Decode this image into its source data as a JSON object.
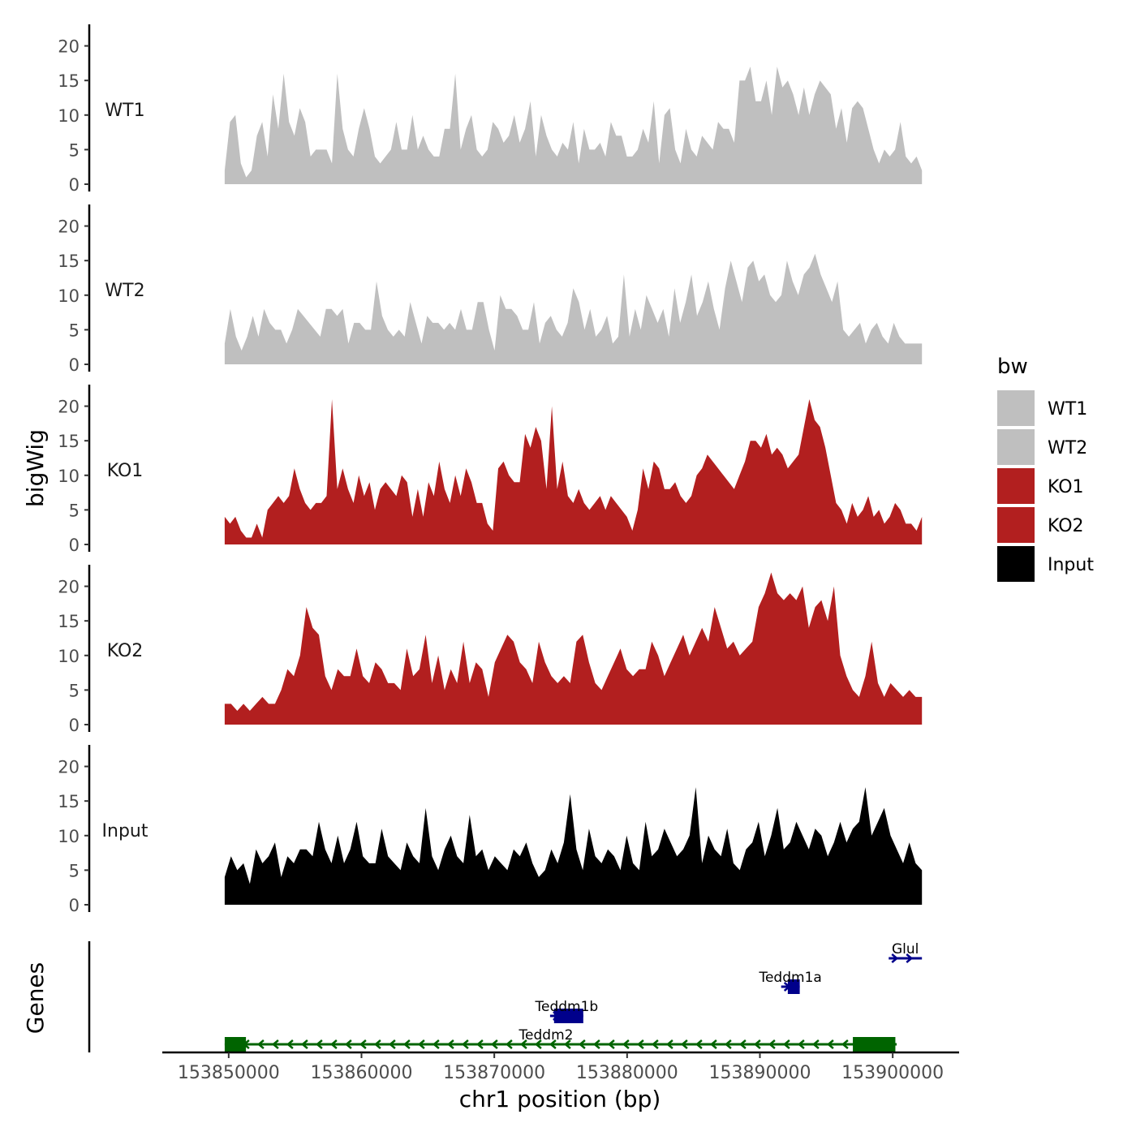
{
  "chart_data": {
    "type": "area",
    "title": "",
    "ylabel": "bigWig",
    "xlabel": "chr1 position (bp)",
    "genes_label": "Genes",
    "xlim": [
      153845000,
      153905000
    ],
    "ylim": [
      0,
      23
    ],
    "y_ticks": [
      0,
      5,
      10,
      15,
      20
    ],
    "x_ticks": [
      153850000,
      153860000,
      153870000,
      153880000,
      153890000,
      153900000
    ],
    "legend": {
      "title": "bw",
      "position": "right",
      "items": [
        {
          "label": "WT1",
          "color": "#bfbfbf"
        },
        {
          "label": "WT2",
          "color": "#bfbfbf"
        },
        {
          "label": "KO1",
          "color": "#b21f1f"
        },
        {
          "label": "KO2",
          "color": "#b21f1f"
        },
        {
          "label": "Input",
          "color": "#000000"
        }
      ]
    },
    "data_range": [
      153849700,
      153902200
    ],
    "series": [
      {
        "name": "WT1",
        "color": "#bfbfbf",
        "values": [
          2,
          9,
          10,
          3,
          1,
          2,
          7,
          9,
          4,
          13,
          8,
          16,
          9,
          7,
          11,
          9,
          4,
          5,
          5,
          5,
          3,
          16,
          8,
          5,
          4,
          8,
          11,
          8,
          4,
          3,
          4,
          5,
          9,
          5,
          5,
          10,
          5,
          7,
          5,
          4,
          4,
          8,
          8,
          16,
          5,
          8,
          10,
          5,
          4,
          5,
          9,
          8,
          6,
          7,
          10,
          6,
          8,
          12,
          4,
          10,
          7,
          5,
          4,
          6,
          5,
          9,
          3,
          8,
          5,
          5,
          6,
          4,
          9,
          7,
          7,
          4,
          4,
          5,
          8,
          6,
          12,
          3,
          10,
          11,
          5,
          3,
          8,
          5,
          4,
          7,
          6,
          5,
          9,
          8,
          8,
          6,
          15,
          15,
          17,
          12,
          12,
          15,
          10,
          17,
          14,
          15,
          13,
          10,
          14,
          10,
          13,
          15,
          14,
          13,
          8,
          11,
          6,
          11,
          12,
          11,
          8,
          5,
          3,
          5,
          4,
          5,
          9,
          4,
          3,
          4,
          2
        ]
      },
      {
        "name": "WT2",
        "color": "#bfbfbf",
        "values": [
          3,
          8,
          4,
          2,
          4,
          7,
          4,
          8,
          6,
          5,
          5,
          3,
          5,
          8,
          7,
          6,
          5,
          4,
          8,
          8,
          7,
          8,
          3,
          6,
          6,
          5,
          5,
          12,
          7,
          5,
          4,
          5,
          4,
          9,
          6,
          3,
          7,
          6,
          6,
          5,
          6,
          5,
          8,
          5,
          5,
          9,
          9,
          5,
          2,
          10,
          8,
          8,
          7,
          5,
          5,
          9,
          3,
          6,
          7,
          5,
          4,
          6,
          11,
          9,
          5,
          8,
          4,
          5,
          7,
          3,
          4,
          13,
          4,
          8,
          5,
          10,
          8,
          6,
          8,
          4,
          11,
          6,
          9,
          13,
          7,
          9,
          12,
          8,
          5,
          11,
          15,
          12,
          9,
          14,
          15,
          12,
          13,
          10,
          9,
          10,
          15,
          12,
          10,
          13,
          14,
          16,
          13,
          11,
          9,
          12,
          5,
          4,
          5,
          6,
          3,
          5,
          6,
          4,
          3,
          6,
          4,
          3,
          3,
          3,
          3
        ]
      },
      {
        "name": "KO1",
        "color": "#b21f1f",
        "values": [
          4,
          3,
          4,
          2,
          1,
          1,
          3,
          1,
          5,
          6,
          7,
          6,
          7,
          11,
          8,
          6,
          5,
          6,
          6,
          7,
          21,
          8,
          11,
          8,
          6,
          10,
          7,
          9,
          5,
          8,
          9,
          8,
          7,
          10,
          9,
          4,
          8,
          4,
          9,
          7,
          12,
          8,
          6,
          10,
          7,
          11,
          9,
          6,
          6,
          3,
          2,
          11,
          12,
          10,
          9,
          9,
          16,
          14,
          17,
          15,
          8,
          20,
          8,
          12,
          7,
          6,
          8,
          6,
          5,
          6,
          7,
          5,
          7,
          6,
          5,
          4,
          2,
          5,
          11,
          8,
          12,
          11,
          8,
          8,
          9,
          7,
          6,
          7,
          10,
          11,
          13,
          12,
          11,
          10,
          9,
          8,
          10,
          12,
          15,
          15,
          14,
          16,
          13,
          14,
          13,
          11,
          12,
          13,
          17,
          21,
          18,
          17,
          14,
          10,
          6,
          5,
          3,
          6,
          4,
          5,
          7,
          4,
          5,
          3,
          4,
          6,
          5,
          3,
          3,
          2,
          4
        ]
      },
      {
        "name": "KO2",
        "color": "#b21f1f",
        "values": [
          3,
          3,
          2,
          3,
          2,
          3,
          4,
          3,
          3,
          5,
          8,
          7,
          10,
          17,
          14,
          13,
          7,
          5,
          8,
          7,
          7,
          11,
          7,
          6,
          9,
          8,
          6,
          6,
          5,
          11,
          7,
          8,
          13,
          6,
          10,
          5,
          8,
          6,
          12,
          6,
          9,
          8,
          4,
          9,
          11,
          13,
          12,
          9,
          8,
          6,
          12,
          9,
          7,
          6,
          7,
          6,
          12,
          13,
          9,
          6,
          5,
          7,
          9,
          11,
          8,
          7,
          8,
          8,
          12,
          10,
          7,
          9,
          11,
          13,
          10,
          12,
          14,
          12,
          17,
          14,
          11,
          12,
          10,
          11,
          12,
          17,
          19,
          22,
          19,
          18,
          19,
          18,
          20,
          14,
          17,
          18,
          15,
          20,
          10,
          7,
          5,
          4,
          7,
          12,
          6,
          4,
          6,
          5,
          4,
          5,
          4,
          4
        ]
      },
      {
        "name": "Input",
        "color": "#000000",
        "values": [
          4,
          7,
          5,
          6,
          3,
          8,
          6,
          7,
          9,
          4,
          7,
          6,
          8,
          8,
          7,
          12,
          8,
          6,
          10,
          6,
          8,
          12,
          7,
          6,
          6,
          11,
          7,
          6,
          5,
          9,
          7,
          6,
          14,
          7,
          5,
          8,
          10,
          7,
          6,
          13,
          7,
          8,
          5,
          7,
          6,
          5,
          8,
          7,
          9,
          6,
          4,
          5,
          8,
          6,
          9,
          16,
          8,
          5,
          11,
          7,
          6,
          8,
          7,
          5,
          10,
          6,
          5,
          12,
          7,
          8,
          11,
          9,
          7,
          8,
          10,
          17,
          6,
          10,
          8,
          7,
          11,
          6,
          5,
          8,
          9,
          12,
          7,
          10,
          14,
          8,
          9,
          12,
          10,
          8,
          11,
          10,
          7,
          9,
          12,
          9,
          11,
          12,
          17,
          10,
          12,
          14,
          10,
          8,
          6,
          9,
          6,
          5
        ]
      }
    ],
    "genes": [
      {
        "name": "Glul",
        "start": 153899700,
        "end": 153902200,
        "strand": "+",
        "color": "#00008b",
        "row": 4,
        "exons": []
      },
      {
        "name": "Teddm1a",
        "start": 153891600,
        "end": 153893000,
        "strand": "+",
        "color": "#00008b",
        "row": 3,
        "exons": [
          [
            153892100,
            153893000
          ]
        ]
      },
      {
        "name": "Teddm1b",
        "start": 153874200,
        "end": 153876700,
        "strand": "+",
        "color": "#00008b",
        "row": 2,
        "exons": [
          [
            153874500,
            153876700
          ]
        ]
      },
      {
        "name": "Teddm2",
        "start": 153849700,
        "end": 153900300,
        "strand": "-",
        "color": "#006400",
        "row": 1,
        "exons": [
          [
            153849700,
            153851300
          ],
          [
            153897000,
            153900200
          ]
        ]
      }
    ]
  }
}
